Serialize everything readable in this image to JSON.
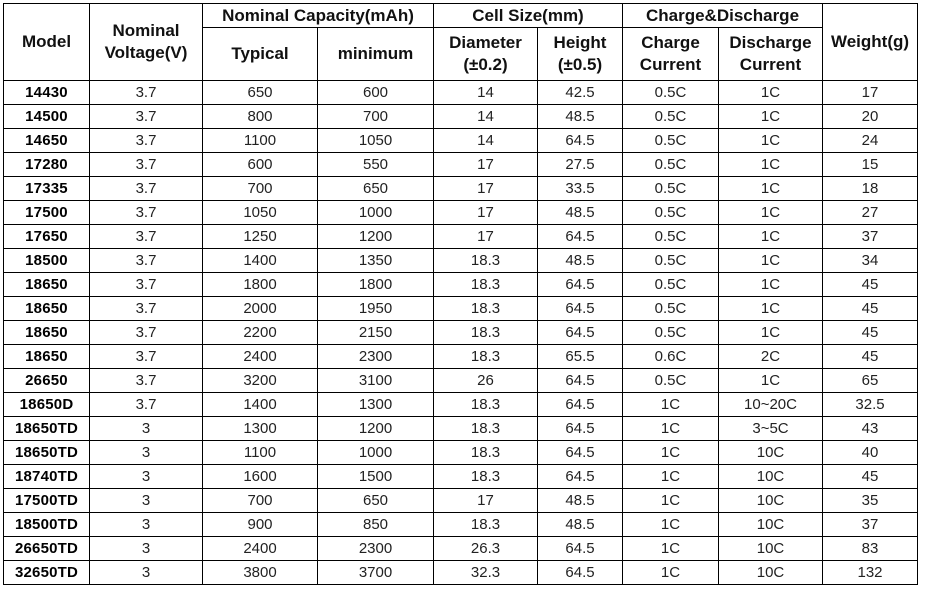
{
  "table": {
    "headers": {
      "model": "Model",
      "nominal_voltage": "Nominal Voltage(V)",
      "nominal_capacity": "Nominal Capacity(mAh)",
      "typical": "Typical",
      "minimum": "minimum",
      "cell_size": "Cell Size(mm)",
      "diameter": "Diameter (±0.2)",
      "height": "Height (±0.5)",
      "charge_discharge": "Charge&Discharge",
      "charge_current": "Charge Current",
      "discharge_current": "Discharge Current",
      "weight": "Weight(g)"
    },
    "rows": [
      [
        "14430",
        "3.7",
        "650",
        "600",
        "14",
        "42.5",
        "0.5C",
        "1C",
        "17"
      ],
      [
        "14500",
        "3.7",
        "800",
        "700",
        "14",
        "48.5",
        "0.5C",
        "1C",
        "20"
      ],
      [
        "14650",
        "3.7",
        "1100",
        "1050",
        "14",
        "64.5",
        "0.5C",
        "1C",
        "24"
      ],
      [
        "17280",
        "3.7",
        "600",
        "550",
        "17",
        "27.5",
        "0.5C",
        "1C",
        "15"
      ],
      [
        "17335",
        "3.7",
        "700",
        "650",
        "17",
        "33.5",
        "0.5C",
        "1C",
        "18"
      ],
      [
        "17500",
        "3.7",
        "1050",
        "1000",
        "17",
        "48.5",
        "0.5C",
        "1C",
        "27"
      ],
      [
        "17650",
        "3.7",
        "1250",
        "1200",
        "17",
        "64.5",
        "0.5C",
        "1C",
        "37"
      ],
      [
        "18500",
        "3.7",
        "1400",
        "1350",
        "18.3",
        "48.5",
        "0.5C",
        "1C",
        "34"
      ],
      [
        "18650",
        "3.7",
        "1800",
        "1800",
        "18.3",
        "64.5",
        "0.5C",
        "1C",
        "45"
      ],
      [
        "18650",
        "3.7",
        "2000",
        "1950",
        "18.3",
        "64.5",
        "0.5C",
        "1C",
        "45"
      ],
      [
        "18650",
        "3.7",
        "2200",
        "2150",
        "18.3",
        "64.5",
        "0.5C",
        "1C",
        "45"
      ],
      [
        "18650",
        "3.7",
        "2400",
        "2300",
        "18.3",
        "65.5",
        "0.6C",
        "2C",
        "45"
      ],
      [
        "26650",
        "3.7",
        "3200",
        "3100",
        "26",
        "64.5",
        "0.5C",
        "1C",
        "65"
      ],
      [
        "18650D",
        "3.7",
        "1400",
        "1300",
        "18.3",
        "64.5",
        "1C",
        "10~20C",
        "32.5"
      ],
      [
        "18650TD",
        "3",
        "1300",
        "1200",
        "18.3",
        "64.5",
        "1C",
        "3~5C",
        "43"
      ],
      [
        "18650TD",
        "3",
        "1100",
        "1000",
        "18.3",
        "64.5",
        "1C",
        "10C",
        "40"
      ],
      [
        "18740TD",
        "3",
        "1600",
        "1500",
        "18.3",
        "64.5",
        "1C",
        "10C",
        "45"
      ],
      [
        "17500TD",
        "3",
        "700",
        "650",
        "17",
        "48.5",
        "1C",
        "10C",
        "35"
      ],
      [
        "18500TD",
        "3",
        "900",
        "850",
        "18.3",
        "48.5",
        "1C",
        "10C",
        "37"
      ],
      [
        "26650TD",
        "3",
        "2400",
        "2300",
        "26.3",
        "64.5",
        "1C",
        "10C",
        "83"
      ],
      [
        "32650TD",
        "3",
        "3800",
        "3700",
        "32.3",
        "64.5",
        "1C",
        "10C",
        "132"
      ]
    ]
  }
}
